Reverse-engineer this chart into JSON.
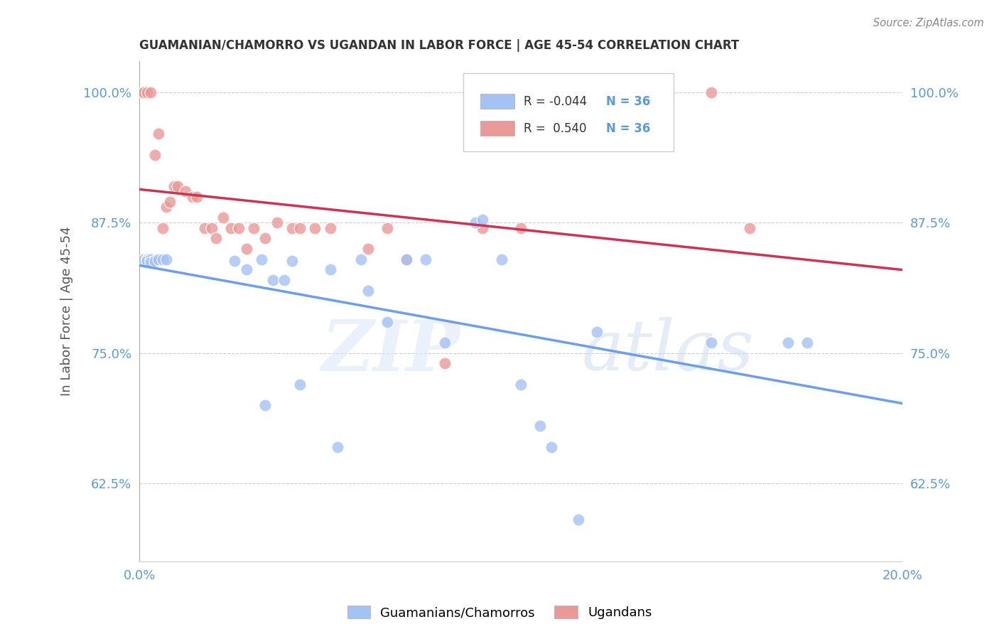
{
  "title": "GUAMANIAN/CHAMORRO VS UGANDAN IN LABOR FORCE | AGE 45-54 CORRELATION CHART",
  "source": "Source: ZipAtlas.com",
  "ylabel": "In Labor Force | Age 45-54",
  "x_min": 0.0,
  "x_max": 0.2,
  "y_min": 0.55,
  "y_max": 1.03,
  "x_ticks": [
    0.0,
    0.05,
    0.1,
    0.15,
    0.2
  ],
  "x_tick_labels": [
    "0.0%",
    "",
    "",
    "",
    "20.0%"
  ],
  "y_ticks": [
    0.625,
    0.75,
    0.875,
    1.0
  ],
  "y_tick_labels": [
    "62.5%",
    "75.0%",
    "87.5%",
    "100.0%"
  ],
  "blue_color": "#a4c2f4",
  "pink_color": "#ea9999",
  "blue_line_color": "#6d9eeb",
  "pink_line_color": "#cc3355",
  "legend_blue_r": "-0.044",
  "legend_blue_n": "36",
  "legend_pink_r": "0.540",
  "legend_pink_n": "36",
  "legend_label_blue": "Guamanians/Chamorros",
  "legend_label_pink": "Ugandans",
  "watermark_zip": "ZIP",
  "watermark_atlas": "atlas",
  "blue_x": [
    0.001,
    0.002,
    0.002,
    0.003,
    0.003,
    0.004,
    0.005,
    0.006,
    0.007,
    0.025,
    0.028,
    0.032,
    0.033,
    0.035,
    0.038,
    0.04,
    0.042,
    0.05,
    0.052,
    0.058,
    0.06,
    0.065,
    0.07,
    0.075,
    0.08,
    0.088,
    0.09,
    0.095,
    0.1,
    0.105,
    0.108,
    0.115,
    0.12,
    0.15,
    0.17,
    0.175
  ],
  "blue_y": [
    0.84,
    0.84,
    0.838,
    0.84,
    0.837,
    0.838,
    0.84,
    0.84,
    0.84,
    0.838,
    0.83,
    0.84,
    0.7,
    0.82,
    0.82,
    0.838,
    0.72,
    0.83,
    0.66,
    0.84,
    0.81,
    0.78,
    0.84,
    0.84,
    0.76,
    0.875,
    0.878,
    0.84,
    0.72,
    0.68,
    0.66,
    0.59,
    0.77,
    0.76,
    0.76,
    0.76
  ],
  "pink_x": [
    0.001,
    0.001,
    0.002,
    0.003,
    0.004,
    0.005,
    0.006,
    0.007,
    0.008,
    0.009,
    0.01,
    0.012,
    0.014,
    0.015,
    0.017,
    0.019,
    0.02,
    0.022,
    0.024,
    0.026,
    0.028,
    0.03,
    0.033,
    0.036,
    0.04,
    0.042,
    0.046,
    0.05,
    0.06,
    0.065,
    0.07,
    0.08,
    0.09,
    0.1,
    0.15,
    0.16
  ],
  "pink_y": [
    1.0,
    1.0,
    1.0,
    1.0,
    0.94,
    0.96,
    0.87,
    0.89,
    0.895,
    0.91,
    0.91,
    0.905,
    0.9,
    0.9,
    0.87,
    0.87,
    0.86,
    0.88,
    0.87,
    0.87,
    0.85,
    0.87,
    0.86,
    0.875,
    0.87,
    0.87,
    0.87,
    0.87,
    0.85,
    0.87,
    0.84,
    0.74,
    0.87,
    0.87,
    1.0,
    0.87
  ]
}
